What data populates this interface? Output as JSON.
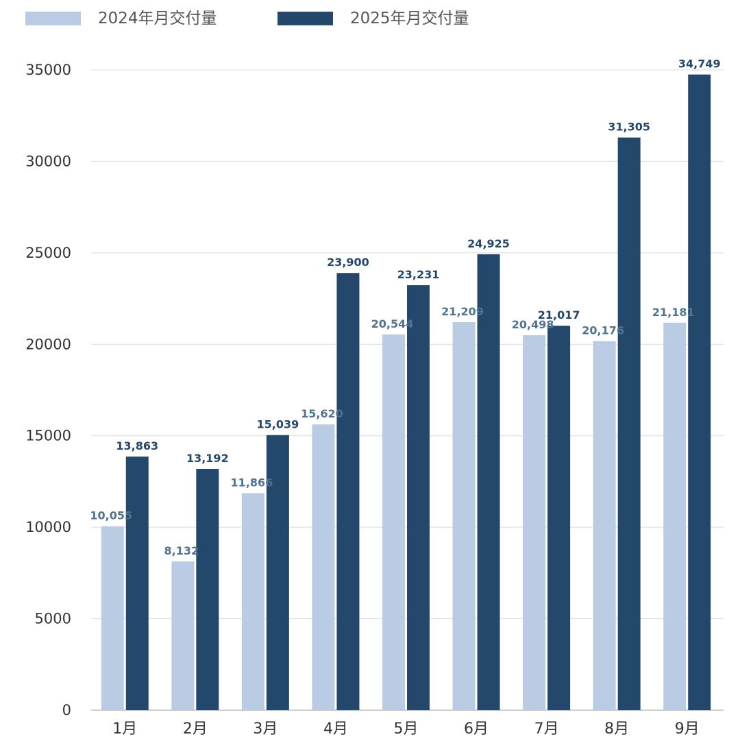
{
  "chart_data": {
    "type": "bar",
    "categories": [
      "1月",
      "2月",
      "3月",
      "4月",
      "5月",
      "6月",
      "7月",
      "8月",
      "9月"
    ],
    "series": [
      {
        "name": "2024年月交付量",
        "color": "#b9cce4",
        "label_color": "#4f7391",
        "values": [
          10055,
          8132,
          11866,
          15620,
          20544,
          21209,
          20498,
          20176,
          21181
        ],
        "labels": [
          "10,055",
          "8,132",
          "11,866",
          "15,620",
          "20,544",
          "21,209",
          "20,498",
          "20,176",
          "21,181"
        ]
      },
      {
        "name": "2025年月交付量",
        "color": "#24486b",
        "label_color": "#24486b",
        "values": [
          13863,
          13192,
          15039,
          23900,
          23231,
          24925,
          21017,
          31305,
          34749
        ],
        "labels": [
          "13,863",
          "13,192",
          "15,039",
          "23,900",
          "23,231",
          "24,925",
          "21,017",
          "31,305",
          "34,749"
        ]
      }
    ],
    "yticks": [
      "0",
      "5000",
      "10000",
      "15000",
      "20000",
      "25000",
      "30000",
      "35000"
    ],
    "ylim": [
      0,
      35000
    ],
    "grid": true,
    "legend": "top-left"
  }
}
